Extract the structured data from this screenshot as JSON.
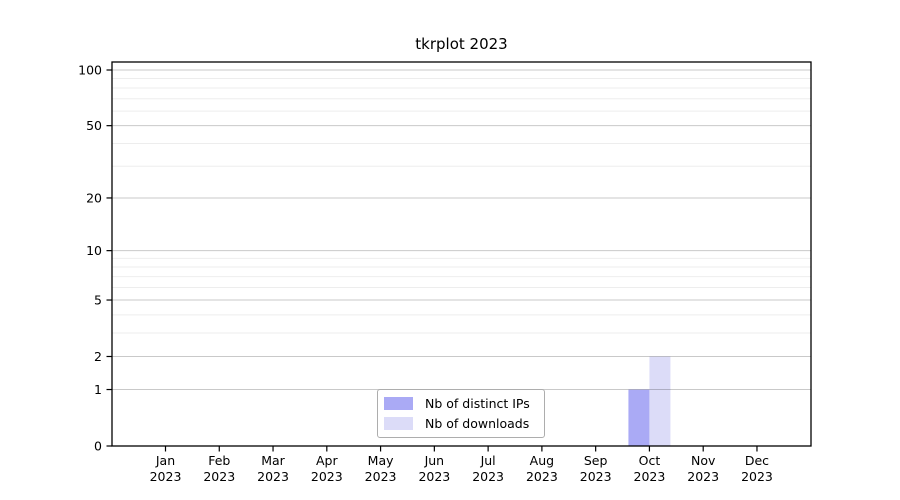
{
  "page": {
    "background": "#ffffff"
  },
  "chart_data": {
    "type": "bar",
    "title": "tkrplot 2023",
    "months": [
      "Jan",
      "Feb",
      "Mar",
      "Apr",
      "May",
      "Jun",
      "Jul",
      "Aug",
      "Sep",
      "Oct",
      "Nov",
      "Dec"
    ],
    "year_label": "2023",
    "series": [
      {
        "name": "Nb of distinct IPs",
        "color": "#aaaaf5",
        "values": [
          0,
          0,
          0,
          0,
          0,
          0,
          0,
          0,
          0,
          1,
          0,
          0
        ]
      },
      {
        "name": "Nb of downloads",
        "color": "#dcdcf8",
        "values": [
          0,
          0,
          0,
          0,
          0,
          0,
          0,
          0,
          0,
          2,
          0,
          0
        ]
      }
    ],
    "y_axis": {
      "scale": "log1p",
      "ylim": [
        0,
        100
      ],
      "ticks": [
        0,
        1,
        2,
        5,
        10,
        20,
        50,
        100
      ],
      "minor_gridlines": [
        3,
        4,
        6,
        7,
        8,
        9,
        30,
        40,
        60,
        70,
        80,
        90
      ]
    },
    "grid": true,
    "legend_position": "bottom-center",
    "colors": {
      "frame": "#000000",
      "major_grid": "rgba(0,0,0,0.21)",
      "minor_grid": "rgba(0,0,0,0.07)",
      "text": "#000000"
    }
  }
}
